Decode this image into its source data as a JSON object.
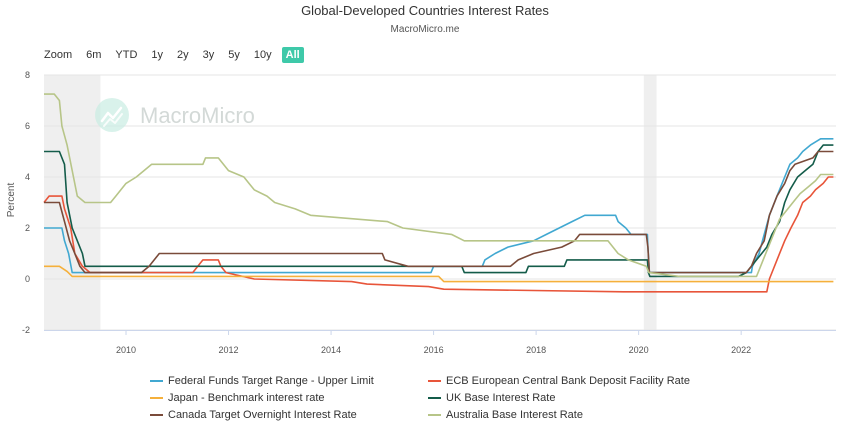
{
  "header": {
    "title": "Global-Developed Countries Interest Rates",
    "subtitle": "MacroMicro.me"
  },
  "range_selector": {
    "label": "Zoom",
    "buttons": [
      "6m",
      "YTD",
      "1y",
      "2y",
      "3y",
      "5y",
      "10y",
      "All"
    ],
    "active": "All"
  },
  "watermark": "MacroMicro",
  "chart_data": {
    "type": "line",
    "ylabel": "Percent",
    "xlabel": "",
    "ylim": [
      -2,
      8
    ],
    "yticks": [
      -2,
      0,
      2,
      4,
      6,
      8
    ],
    "xlim": [
      2008.4,
      2023.85
    ],
    "xticks": [
      2010,
      2012,
      2014,
      2016,
      2018,
      2020,
      2022
    ],
    "grid": true,
    "legend_position": "bottom",
    "shaded_periods": [
      [
        2008.4,
        2009.5
      ],
      [
        2020.1,
        2020.35
      ]
    ],
    "series": [
      {
        "name": "Federal Funds Target Range - Upper Limit",
        "color": "#41a8d1",
        "points": [
          [
            2008.4,
            2.0
          ],
          [
            2008.75,
            2.0
          ],
          [
            2008.8,
            1.5
          ],
          [
            2008.88,
            1.0
          ],
          [
            2008.95,
            0.25
          ],
          [
            2015.95,
            0.25
          ],
          [
            2016.0,
            0.5
          ],
          [
            2016.95,
            0.5
          ],
          [
            2017.0,
            0.75
          ],
          [
            2017.2,
            1.0
          ],
          [
            2017.45,
            1.25
          ],
          [
            2017.95,
            1.5
          ],
          [
            2018.2,
            1.75
          ],
          [
            2018.45,
            2.0
          ],
          [
            2018.7,
            2.25
          ],
          [
            2018.95,
            2.5
          ],
          [
            2019.55,
            2.5
          ],
          [
            2019.6,
            2.25
          ],
          [
            2019.75,
            2.0
          ],
          [
            2019.85,
            1.75
          ],
          [
            2020.17,
            1.75
          ],
          [
            2020.18,
            1.25
          ],
          [
            2020.21,
            0.25
          ],
          [
            2022.2,
            0.25
          ],
          [
            2022.22,
            0.5
          ],
          [
            2022.35,
            1.0
          ],
          [
            2022.45,
            1.75
          ],
          [
            2022.55,
            2.5
          ],
          [
            2022.7,
            3.25
          ],
          [
            2022.85,
            4.0
          ],
          [
            2022.95,
            4.5
          ],
          [
            2023.1,
            4.75
          ],
          [
            2023.2,
            5.0
          ],
          [
            2023.35,
            5.25
          ],
          [
            2023.55,
            5.5
          ],
          [
            2023.8,
            5.5
          ]
        ]
      },
      {
        "name": "ECB European Central Bank Deposit Facility Rate",
        "color": "#e8553a",
        "points": [
          [
            2008.4,
            3.0
          ],
          [
            2008.5,
            3.25
          ],
          [
            2008.75,
            3.25
          ],
          [
            2008.8,
            2.75
          ],
          [
            2008.92,
            2.0
          ],
          [
            2009.0,
            1.0
          ],
          [
            2009.15,
            0.5
          ],
          [
            2009.3,
            0.25
          ],
          [
            2011.3,
            0.25
          ],
          [
            2011.5,
            0.75
          ],
          [
            2011.8,
            0.75
          ],
          [
            2011.85,
            0.5
          ],
          [
            2011.95,
            0.25
          ],
          [
            2012.5,
            0.0
          ],
          [
            2014.4,
            -0.1
          ],
          [
            2014.7,
            -0.2
          ],
          [
            2015.9,
            -0.3
          ],
          [
            2016.2,
            -0.4
          ],
          [
            2019.7,
            -0.5
          ],
          [
            2022.5,
            -0.5
          ],
          [
            2022.55,
            0.0
          ],
          [
            2022.7,
            0.75
          ],
          [
            2022.85,
            1.5
          ],
          [
            2022.97,
            2.0
          ],
          [
            2023.1,
            2.5
          ],
          [
            2023.2,
            3.0
          ],
          [
            2023.35,
            3.25
          ],
          [
            2023.45,
            3.5
          ],
          [
            2023.6,
            3.75
          ],
          [
            2023.7,
            4.0
          ],
          [
            2023.8,
            4.0
          ]
        ]
      },
      {
        "name": "Japan - Benchmark interest rate",
        "color": "#f5b03b",
        "points": [
          [
            2008.4,
            0.5
          ],
          [
            2008.7,
            0.5
          ],
          [
            2008.85,
            0.3
          ],
          [
            2008.95,
            0.1
          ],
          [
            2016.1,
            0.1
          ],
          [
            2016.2,
            -0.1
          ],
          [
            2023.8,
            -0.1
          ]
        ]
      },
      {
        "name": "UK Base Interest Rate",
        "color": "#145c4a",
        "points": [
          [
            2008.4,
            5.0
          ],
          [
            2008.7,
            5.0
          ],
          [
            2008.8,
            4.5
          ],
          [
            2008.85,
            3.0
          ],
          [
            2008.95,
            2.0
          ],
          [
            2009.05,
            1.5
          ],
          [
            2009.15,
            1.0
          ],
          [
            2009.2,
            0.5
          ],
          [
            2016.55,
            0.5
          ],
          [
            2016.6,
            0.25
          ],
          [
            2017.8,
            0.25
          ],
          [
            2017.85,
            0.5
          ],
          [
            2018.55,
            0.5
          ],
          [
            2018.6,
            0.75
          ],
          [
            2020.17,
            0.75
          ],
          [
            2020.19,
            0.25
          ],
          [
            2020.22,
            0.1
          ],
          [
            2021.95,
            0.1
          ],
          [
            2022.1,
            0.25
          ],
          [
            2022.2,
            0.5
          ],
          [
            2022.3,
            0.75
          ],
          [
            2022.4,
            1.0
          ],
          [
            2022.5,
            1.25
          ],
          [
            2022.6,
            1.75
          ],
          [
            2022.75,
            2.25
          ],
          [
            2022.85,
            3.0
          ],
          [
            2022.95,
            3.5
          ],
          [
            2023.1,
            4.0
          ],
          [
            2023.25,
            4.25
          ],
          [
            2023.4,
            4.5
          ],
          [
            2023.5,
            5.0
          ],
          [
            2023.6,
            5.25
          ],
          [
            2023.8,
            5.25
          ]
        ]
      },
      {
        "name": "Canada Target Overnight Interest Rate",
        "color": "#7a4b3a",
        "points": [
          [
            2008.4,
            3.0
          ],
          [
            2008.7,
            3.0
          ],
          [
            2008.8,
            2.25
          ],
          [
            2008.9,
            1.5
          ],
          [
            2009.0,
            1.0
          ],
          [
            2009.1,
            0.5
          ],
          [
            2009.2,
            0.25
          ],
          [
            2010.3,
            0.25
          ],
          [
            2010.45,
            0.5
          ],
          [
            2010.55,
            0.75
          ],
          [
            2010.65,
            1.0
          ],
          [
            2015.0,
            1.0
          ],
          [
            2015.05,
            0.75
          ],
          [
            2015.5,
            0.5
          ],
          [
            2017.5,
            0.5
          ],
          [
            2017.65,
            0.75
          ],
          [
            2017.95,
            1.0
          ],
          [
            2018.5,
            1.25
          ],
          [
            2018.75,
            1.5
          ],
          [
            2018.85,
            1.75
          ],
          [
            2020.15,
            1.75
          ],
          [
            2020.18,
            1.25
          ],
          [
            2020.21,
            0.25
          ],
          [
            2022.1,
            0.25
          ],
          [
            2022.2,
            0.5
          ],
          [
            2022.3,
            1.0
          ],
          [
            2022.45,
            1.5
          ],
          [
            2022.55,
            2.5
          ],
          [
            2022.7,
            3.25
          ],
          [
            2022.85,
            3.75
          ],
          [
            2022.95,
            4.25
          ],
          [
            2023.05,
            4.5
          ],
          [
            2023.4,
            4.75
          ],
          [
            2023.5,
            5.0
          ],
          [
            2023.8,
            5.0
          ]
        ]
      },
      {
        "name": "Australia Base Interest Rate",
        "color": "#b7c588",
        "points": [
          [
            2008.4,
            7.25
          ],
          [
            2008.6,
            7.25
          ],
          [
            2008.7,
            7.0
          ],
          [
            2008.75,
            6.0
          ],
          [
            2008.85,
            5.25
          ],
          [
            2008.95,
            4.25
          ],
          [
            2009.05,
            3.25
          ],
          [
            2009.2,
            3.0
          ],
          [
            2009.7,
            3.0
          ],
          [
            2009.8,
            3.25
          ],
          [
            2009.9,
            3.5
          ],
          [
            2010.0,
            3.75
          ],
          [
            2010.2,
            4.0
          ],
          [
            2010.35,
            4.25
          ],
          [
            2010.5,
            4.5
          ],
          [
            2011.5,
            4.5
          ],
          [
            2011.55,
            4.75
          ],
          [
            2011.8,
            4.75
          ],
          [
            2011.9,
            4.5
          ],
          [
            2012.0,
            4.25
          ],
          [
            2012.3,
            4.0
          ],
          [
            2012.4,
            3.75
          ],
          [
            2012.5,
            3.5
          ],
          [
            2012.75,
            3.25
          ],
          [
            2012.9,
            3.0
          ],
          [
            2013.3,
            2.75
          ],
          [
            2013.6,
            2.5
          ],
          [
            2015.1,
            2.25
          ],
          [
            2015.4,
            2.0
          ],
          [
            2016.35,
            1.75
          ],
          [
            2016.6,
            1.5
          ],
          [
            2019.4,
            1.5
          ],
          [
            2019.5,
            1.25
          ],
          [
            2019.6,
            1.0
          ],
          [
            2019.8,
            0.75
          ],
          [
            2020.15,
            0.5
          ],
          [
            2020.2,
            0.25
          ],
          [
            2020.8,
            0.1
          ],
          [
            2022.3,
            0.1
          ],
          [
            2022.35,
            0.35
          ],
          [
            2022.45,
            0.85
          ],
          [
            2022.55,
            1.35
          ],
          [
            2022.65,
            1.85
          ],
          [
            2022.75,
            2.35
          ],
          [
            2022.85,
            2.6
          ],
          [
            2022.95,
            2.85
          ],
          [
            2023.05,
            3.1
          ],
          [
            2023.15,
            3.35
          ],
          [
            2023.3,
            3.6
          ],
          [
            2023.45,
            3.85
          ],
          [
            2023.55,
            4.1
          ],
          [
            2023.8,
            4.1
          ]
        ]
      }
    ]
  }
}
